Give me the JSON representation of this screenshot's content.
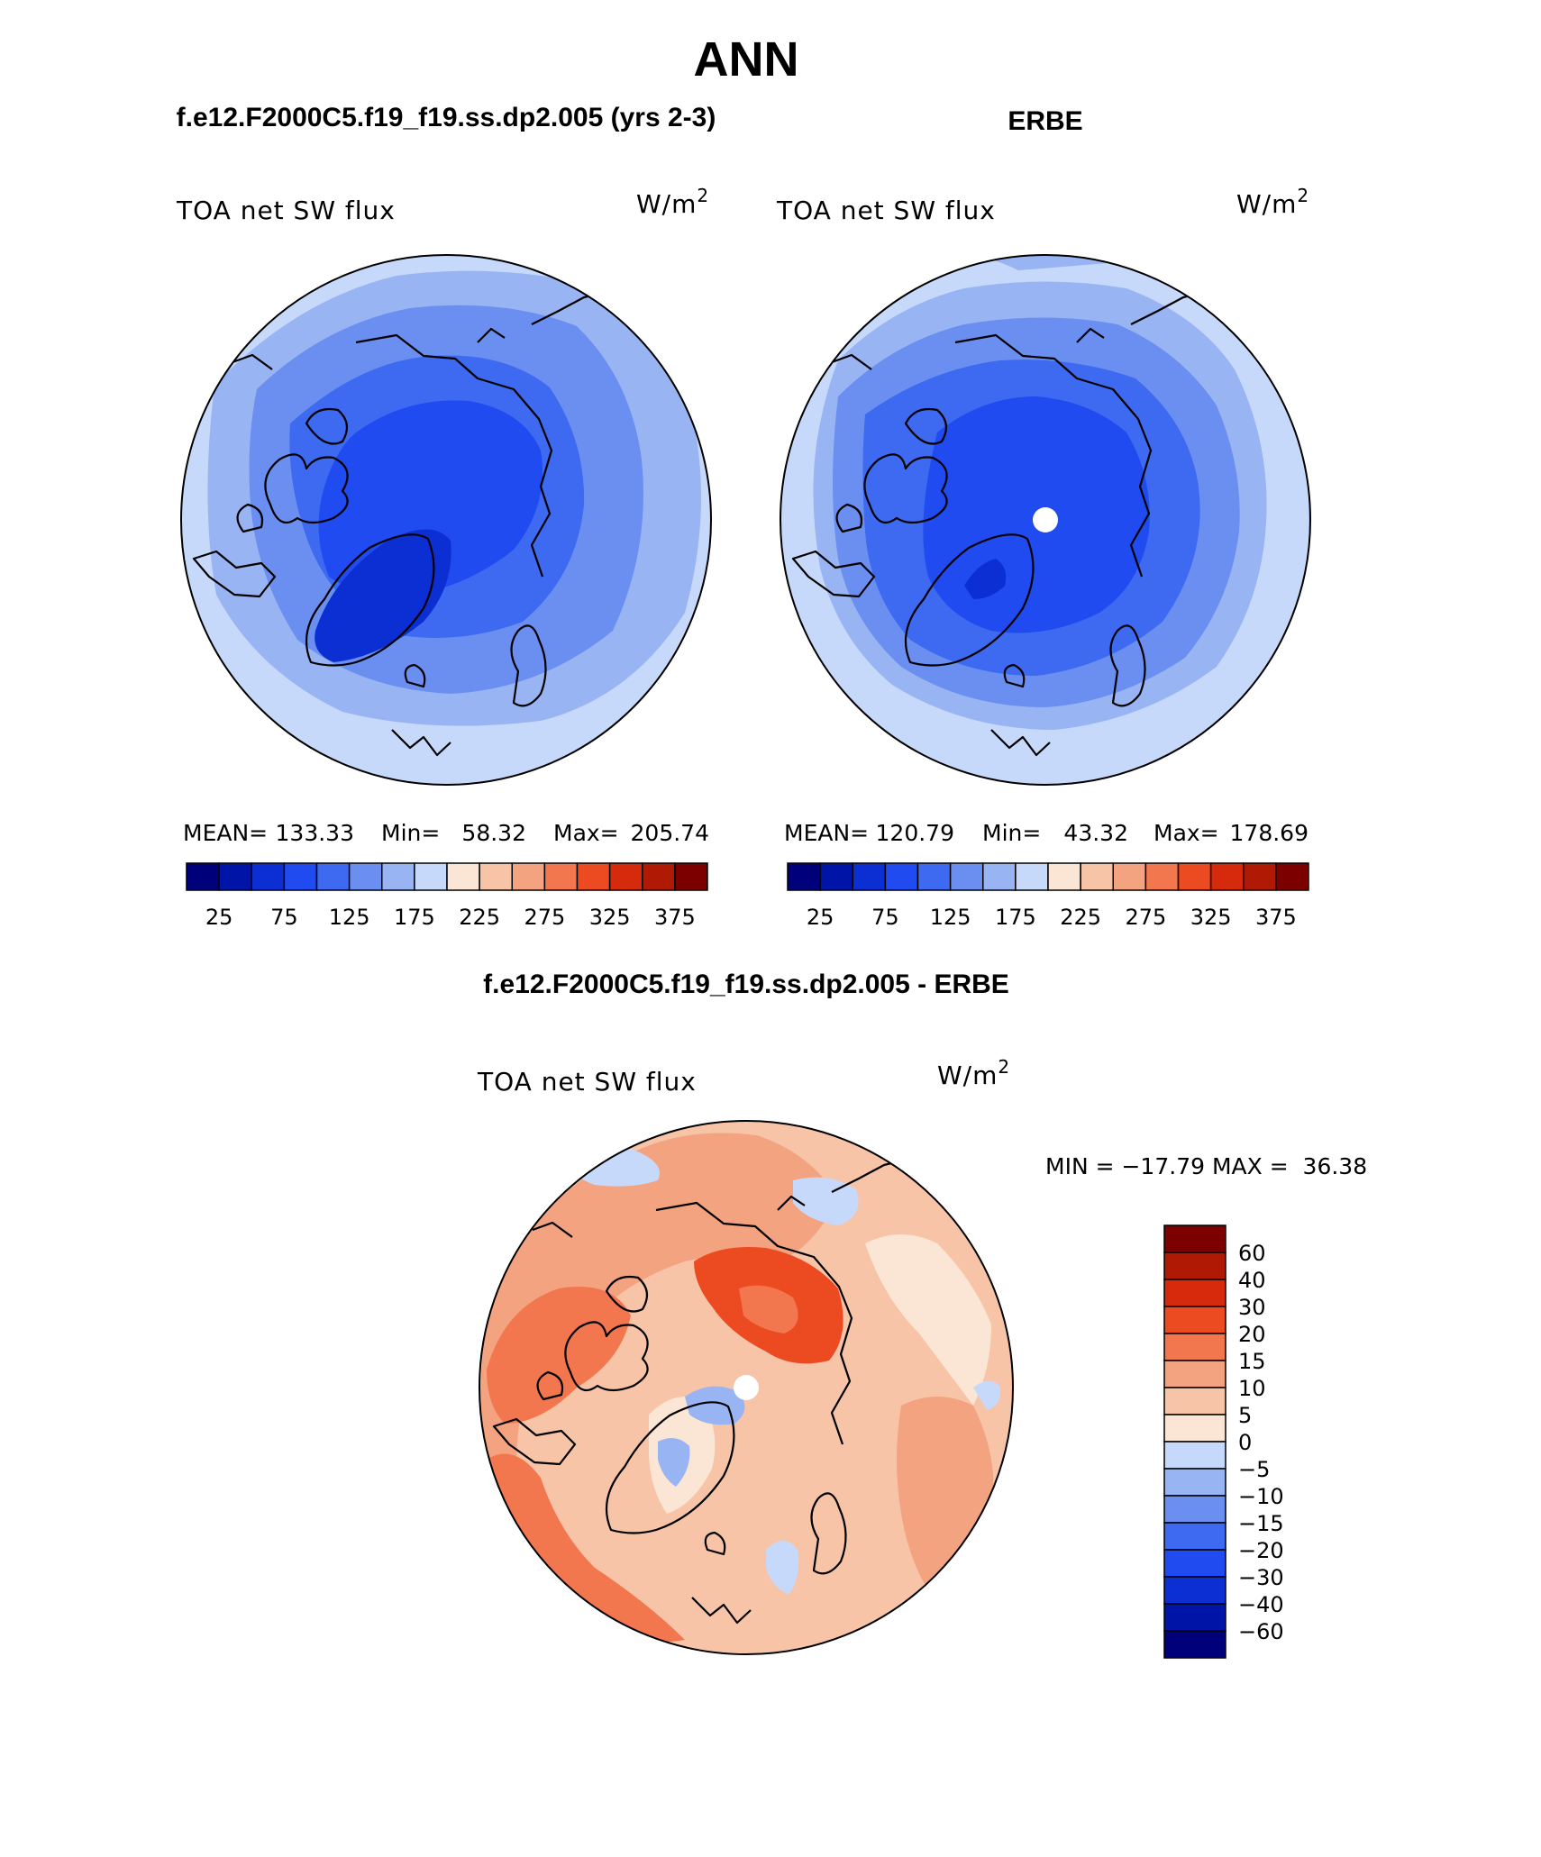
{
  "page": {
    "title": "ANN",
    "left_case": "f.e12.F2000C5.f19_f19.ss.dp2.005 (yrs 2-3)",
    "right_case": "ERBE",
    "diff_case": "f.e12.F2000C5.f19_f19.ss.dp2.005 - ERBE"
  },
  "panels": {
    "left": {
      "var": "TOA net SW flux",
      "units": "W/m",
      "units_sup": "2",
      "mean_label": "MEAN=",
      "mean": "133.33",
      "min_label": "Min=",
      "min": "58.32",
      "max_label": "Max=",
      "max": "205.74"
    },
    "right": {
      "var": "TOA net SW flux",
      "units": "W/m",
      "units_sup": "2",
      "mean_label": "MEAN=",
      "mean": "120.79",
      "min_label": "Min=",
      "min": "43.32",
      "max_label": "Max=",
      "max": "178.69"
    },
    "diff": {
      "var": "TOA net SW flux",
      "units": "W/m",
      "units_sup": "2",
      "minmax": "MIN = −17.79 MAX =  36.38"
    }
  },
  "colorbars": {
    "abs": {
      "colors": [
        "#00007a",
        "#0014a8",
        "#0b2fd2",
        "#1f4bf0",
        "#3d6af0",
        "#6a8ff0",
        "#98b4f3",
        "#c7d9fa",
        "#fbe5d5",
        "#f7c4a7",
        "#f4a380",
        "#f2774f",
        "#ec4a21",
        "#d52a0c",
        "#b01a05",
        "#7c0000"
      ],
      "labels": [
        "25",
        "75",
        "125",
        "175",
        "225",
        "275",
        "325",
        "375"
      ]
    },
    "diff": {
      "colors": [
        "#00007a",
        "#0014a8",
        "#0b2fd2",
        "#1f4bf0",
        "#3d6af0",
        "#6a8ff0",
        "#98b4f3",
        "#c7d9fa",
        "#fbe5d5",
        "#f7c4a7",
        "#f4a380",
        "#f2774f",
        "#ec4a21",
        "#d52a0c",
        "#b01a05",
        "#7c0000"
      ],
      "labels": [
        "60",
        "40",
        "30",
        "20",
        "15",
        "10",
        "5",
        "0",
        "−5",
        "−10",
        "−15",
        "−20",
        "−30",
        "−40",
        "−60"
      ]
    }
  }
}
